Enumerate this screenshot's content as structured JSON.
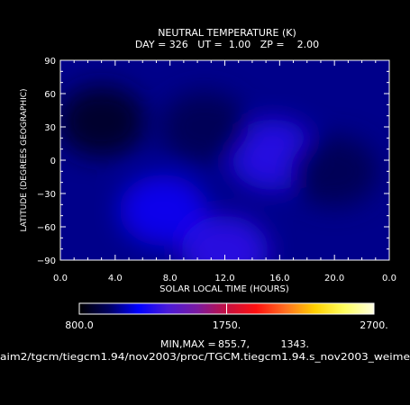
{
  "chart_data": {
    "type": "heatmap",
    "title": "NEUTRAL TEMPERATURE (K)",
    "subtitle": "DAY = 326   UT =  1.00   ZP =    2.00",
    "xlabel": "SOLAR LOCAL TIME (HOURS)",
    "ylabel": "LATITUDE (DEGREES GEOGRAPHIC)",
    "x_range": [
      0,
      24
    ],
    "x_ticks": [
      "0.0",
      "4.0",
      "8.0",
      "12.0",
      "16.0",
      "20.0",
      "0.0"
    ],
    "y_range": [
      -90,
      90
    ],
    "y_ticks": [
      "-90",
      "-60",
      "-30",
      "0",
      "30",
      "60",
      "90"
    ],
    "grid": false,
    "field_features": {
      "background_K": 1040,
      "warm_spots": [
        {
          "lt": 15.5,
          "lat": 5,
          "value_K": 1280
        },
        {
          "lt": 7.5,
          "lat": -45,
          "value_K": 1230
        },
        {
          "lt": 12.0,
          "lat": -82,
          "value_K": 1290
        }
      ],
      "cold_spots": [
        {
          "lt": 3.0,
          "lat": 35,
          "value_K": 870
        },
        {
          "lt": 10.5,
          "lat": 30,
          "value_K": 960
        },
        {
          "lt": 20.0,
          "lat": -10,
          "value_K": 960
        }
      ]
    },
    "colorbar": {
      "min": 800.0,
      "max": 2700.0,
      "labels": [
        "800.0",
        "1750.",
        "2700."
      ],
      "colors": [
        "#000000",
        "#000060",
        "#0000ff",
        "#4a1ad8",
        "#7a1aa0",
        "#c41040",
        "#ff1010",
        "#ff7020",
        "#ffd000",
        "#ffff60",
        "#ffffe0"
      ]
    },
    "minmax_label": "MIN,MAX =",
    "min_value": "855.7,",
    "max_value": "1343."
  },
  "file_path": "aim2/tgcm/tiegcm1.94/nov2003/proc/TGCM.tiegcm1.94.s_nov2003_weime"
}
